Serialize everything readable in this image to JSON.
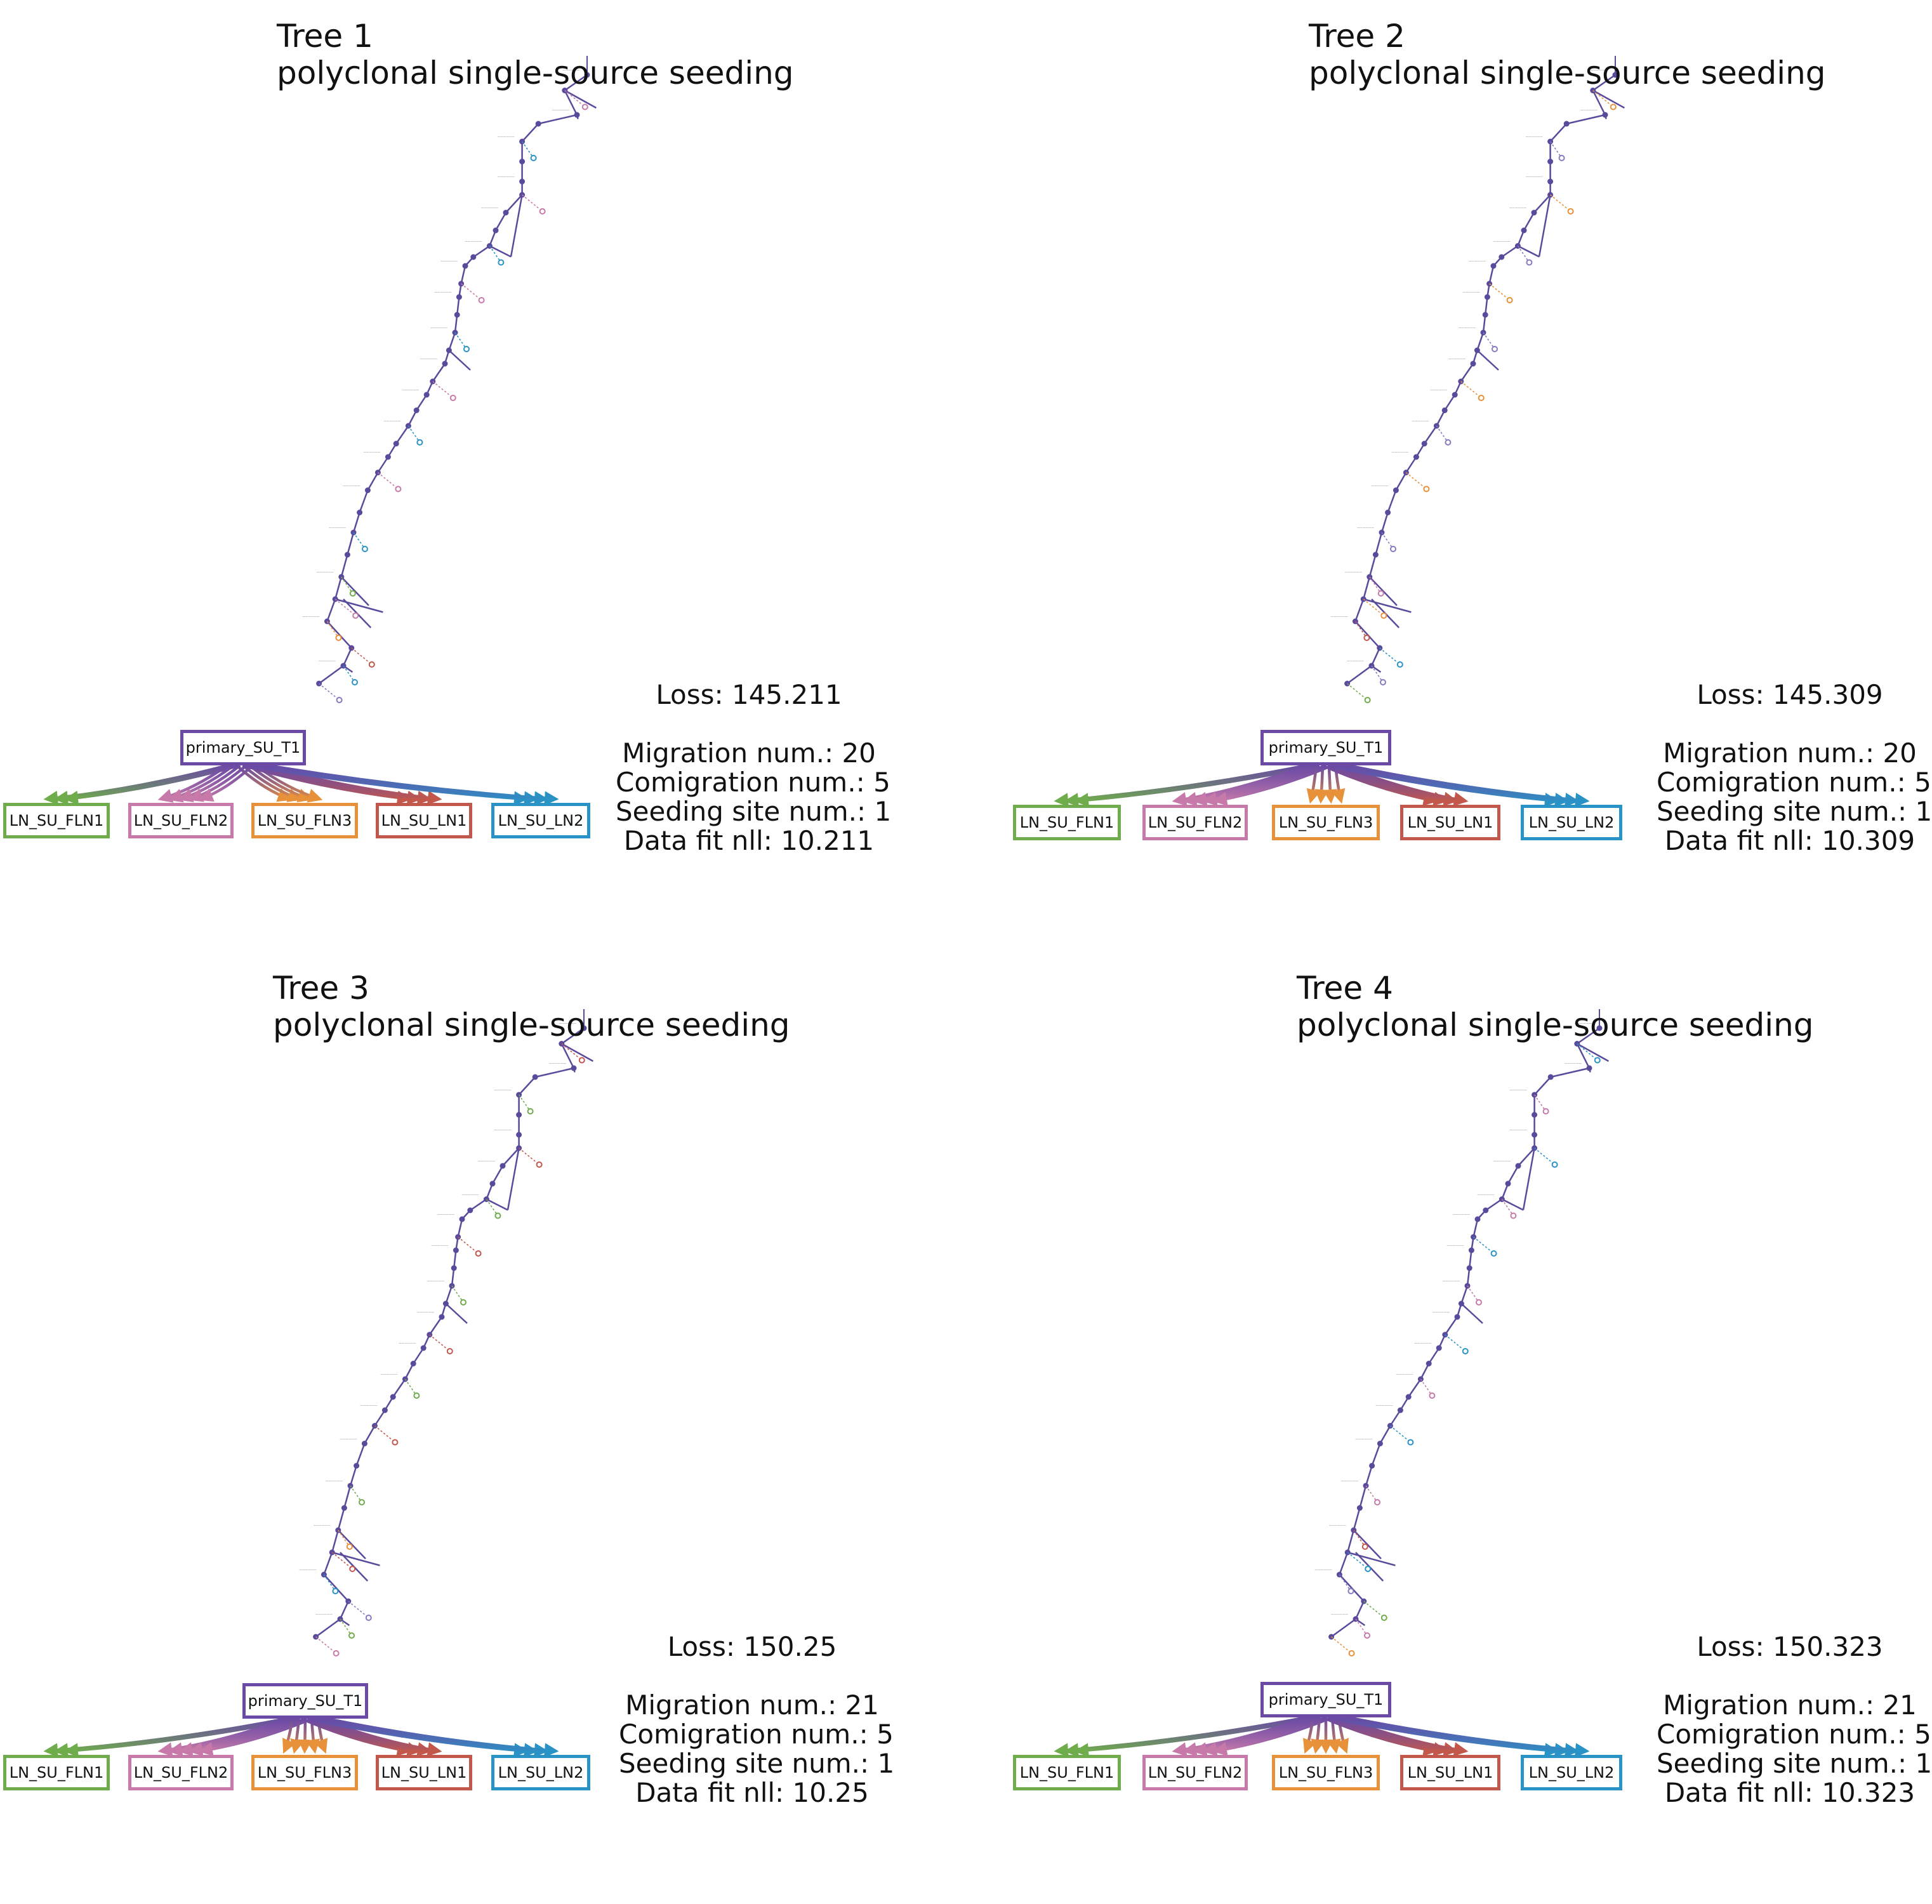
{
  "panels": [
    {
      "title": "Tree 1",
      "pattern": "polyclonal single-source seeding",
      "stats": {
        "loss": "Loss: 145.211",
        "migration": "Migration num.: 20",
        "comigration": "Comigration num.: 5",
        "seeding": "Seeding site num.: 1",
        "datafit": "Data fit nll: 10.211"
      },
      "migration_counts": [
        3,
        5,
        4,
        4,
        4
      ]
    },
    {
      "title": "Tree 2",
      "pattern": "polyclonal single-source seeding",
      "stats": {
        "loss": "Loss: 145.309",
        "migration": "Migration num.: 20",
        "comigration": "Comigration num.: 5",
        "seeding": "Seeding site num.: 1",
        "datafit": "Data fit nll: 10.309"
      },
      "migration_counts": [
        3,
        5,
        4,
        4,
        4
      ]
    },
    {
      "title": "Tree 3",
      "pattern": "polyclonal single-source seeding",
      "stats": {
        "loss": "Loss: 150.25",
        "migration": "Migration num.: 21",
        "comigration": "Comigration num.: 5",
        "seeding": "Seeding site num.: 1",
        "datafit": "Data fit nll: 10.25"
      },
      "migration_counts": [
        3,
        5,
        5,
        4,
        4
      ]
    },
    {
      "title": "Tree 4",
      "pattern": "polyclonal single-source seeding",
      "stats": {
        "loss": "Loss: 150.323",
        "migration": "Migration num.: 21",
        "comigration": "Comigration num.: 5",
        "seeding": "Seeding site num.: 1",
        "datafit": "Data fit nll: 10.323"
      },
      "migration_counts": [
        3,
        5,
        5,
        4,
        4
      ]
    }
  ],
  "primary_site": {
    "label": "primary_SU_T1",
    "color": "#6a4aa5"
  },
  "sites": [
    {
      "label": "LN_SU_FLN1",
      "color": "#6fac4b"
    },
    {
      "label": "LN_SU_FLN2",
      "color": "#c77aaa"
    },
    {
      "label": "LN_SU_FLN3",
      "color": "#e7923a"
    },
    {
      "label": "LN_SU_LN1",
      "color": "#c2584c"
    },
    {
      "label": "LN_SU_LN2",
      "color": "#2a93c6"
    }
  ],
  "tree_color": "#5a4a9c"
}
